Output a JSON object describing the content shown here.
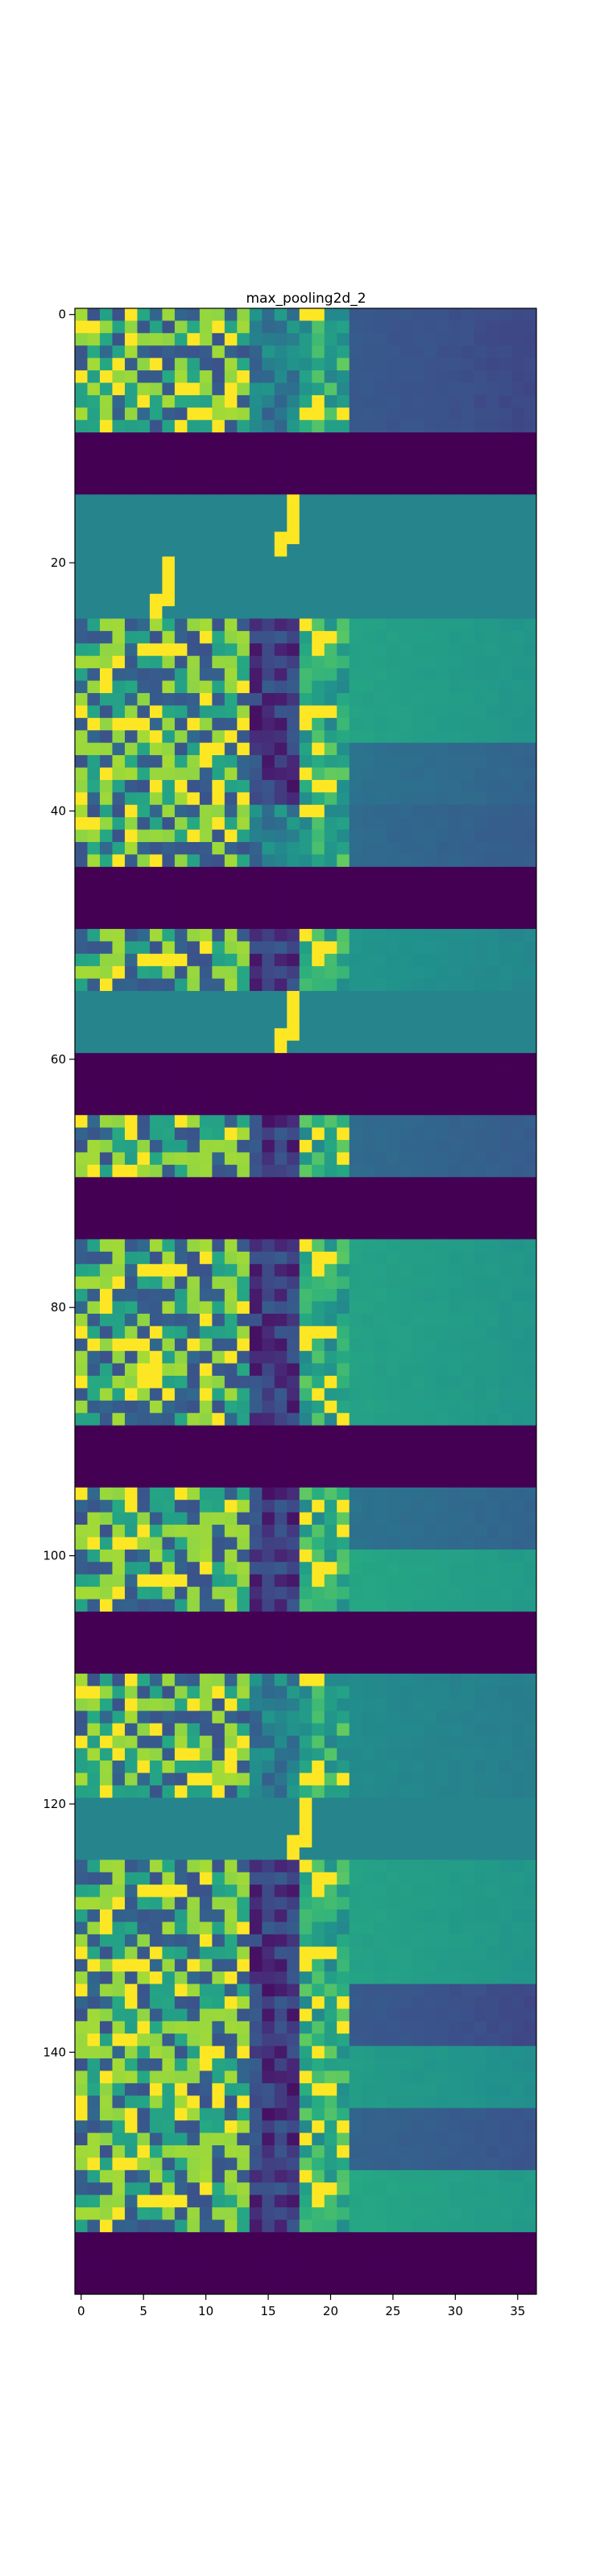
{
  "chart_data": {
    "type": "heatmap",
    "title": "max_pooling2d_2",
    "xlabel": "",
    "ylabel": "",
    "columns": 37,
    "rows": 160,
    "xlim": [
      -0.5,
      36.5
    ],
    "ylim": [
      159.5,
      -0.5
    ],
    "x_ticks": [
      0,
      5,
      10,
      15,
      20,
      25,
      30,
      35
    ],
    "y_ticks": [
      0,
      20,
      40,
      60,
      80,
      100,
      120,
      140
    ],
    "x_tick_labels": [
      "0",
      "5",
      "10",
      "15",
      "20",
      "25",
      "30",
      "35"
    ],
    "y_tick_labels": [
      "0",
      "20",
      "40",
      "60",
      "80",
      "100",
      "120",
      "140"
    ],
    "colormap": "viridis",
    "value_range": [
      0,
      1
    ],
    "grid": false,
    "row_groups": [
      {
        "start": 0,
        "end": 10,
        "kind": "active",
        "pattern": "A",
        "tail": 0.28
      },
      {
        "start": 10,
        "end": 15,
        "kind": "flat",
        "value": 0.0
      },
      {
        "start": 15,
        "end": 20,
        "kind": "flat_spike",
        "value": 0.45,
        "spike_col": 17
      },
      {
        "start": 20,
        "end": 25,
        "kind": "flat_spike",
        "value": 0.45,
        "spike_col": 7
      },
      {
        "start": 25,
        "end": 35,
        "kind": "active",
        "pattern": "B",
        "tail": 0.58
      },
      {
        "start": 35,
        "end": 40,
        "kind": "active",
        "pattern": "C",
        "tail": 0.38
      },
      {
        "start": 40,
        "end": 45,
        "kind": "active",
        "pattern": "A",
        "tail": 0.35
      },
      {
        "start": 45,
        "end": 50,
        "kind": "flat",
        "value": 0.0
      },
      {
        "start": 50,
        "end": 55,
        "kind": "active",
        "pattern": "B",
        "tail": 0.52
      },
      {
        "start": 55,
        "end": 60,
        "kind": "flat_spike",
        "value": 0.45,
        "spike_col": 17
      },
      {
        "start": 60,
        "end": 65,
        "kind": "flat",
        "value": 0.0
      },
      {
        "start": 65,
        "end": 70,
        "kind": "active",
        "pattern": "D",
        "tail": 0.35
      },
      {
        "start": 70,
        "end": 75,
        "kind": "flat",
        "value": 0.0
      },
      {
        "start": 75,
        "end": 90,
        "kind": "active",
        "pattern": "B",
        "tail": 0.58
      },
      {
        "start": 90,
        "end": 95,
        "kind": "flat",
        "value": 0.0
      },
      {
        "start": 95,
        "end": 100,
        "kind": "active",
        "pattern": "D",
        "tail": 0.38
      },
      {
        "start": 100,
        "end": 105,
        "kind": "active",
        "pattern": "B",
        "tail": 0.6
      },
      {
        "start": 105,
        "end": 110,
        "kind": "flat",
        "value": 0.0
      },
      {
        "start": 110,
        "end": 120,
        "kind": "active",
        "pattern": "A",
        "tail": 0.48
      },
      {
        "start": 120,
        "end": 125,
        "kind": "flat_spike",
        "value": 0.45,
        "spike_col": 18
      },
      {
        "start": 125,
        "end": 135,
        "kind": "active",
        "pattern": "B",
        "tail": 0.58
      },
      {
        "start": 135,
        "end": 140,
        "kind": "active",
        "pattern": "D",
        "tail": 0.28
      },
      {
        "start": 140,
        "end": 145,
        "kind": "active",
        "pattern": "C",
        "tail": 0.55
      },
      {
        "start": 145,
        "end": 150,
        "kind": "active",
        "pattern": "D",
        "tail": 0.32
      },
      {
        "start": 150,
        "end": 155,
        "kind": "active",
        "pattern": "B",
        "tail": 0.6
      },
      {
        "start": 155,
        "end": 160,
        "kind": "flat",
        "value": 0.0
      }
    ]
  }
}
